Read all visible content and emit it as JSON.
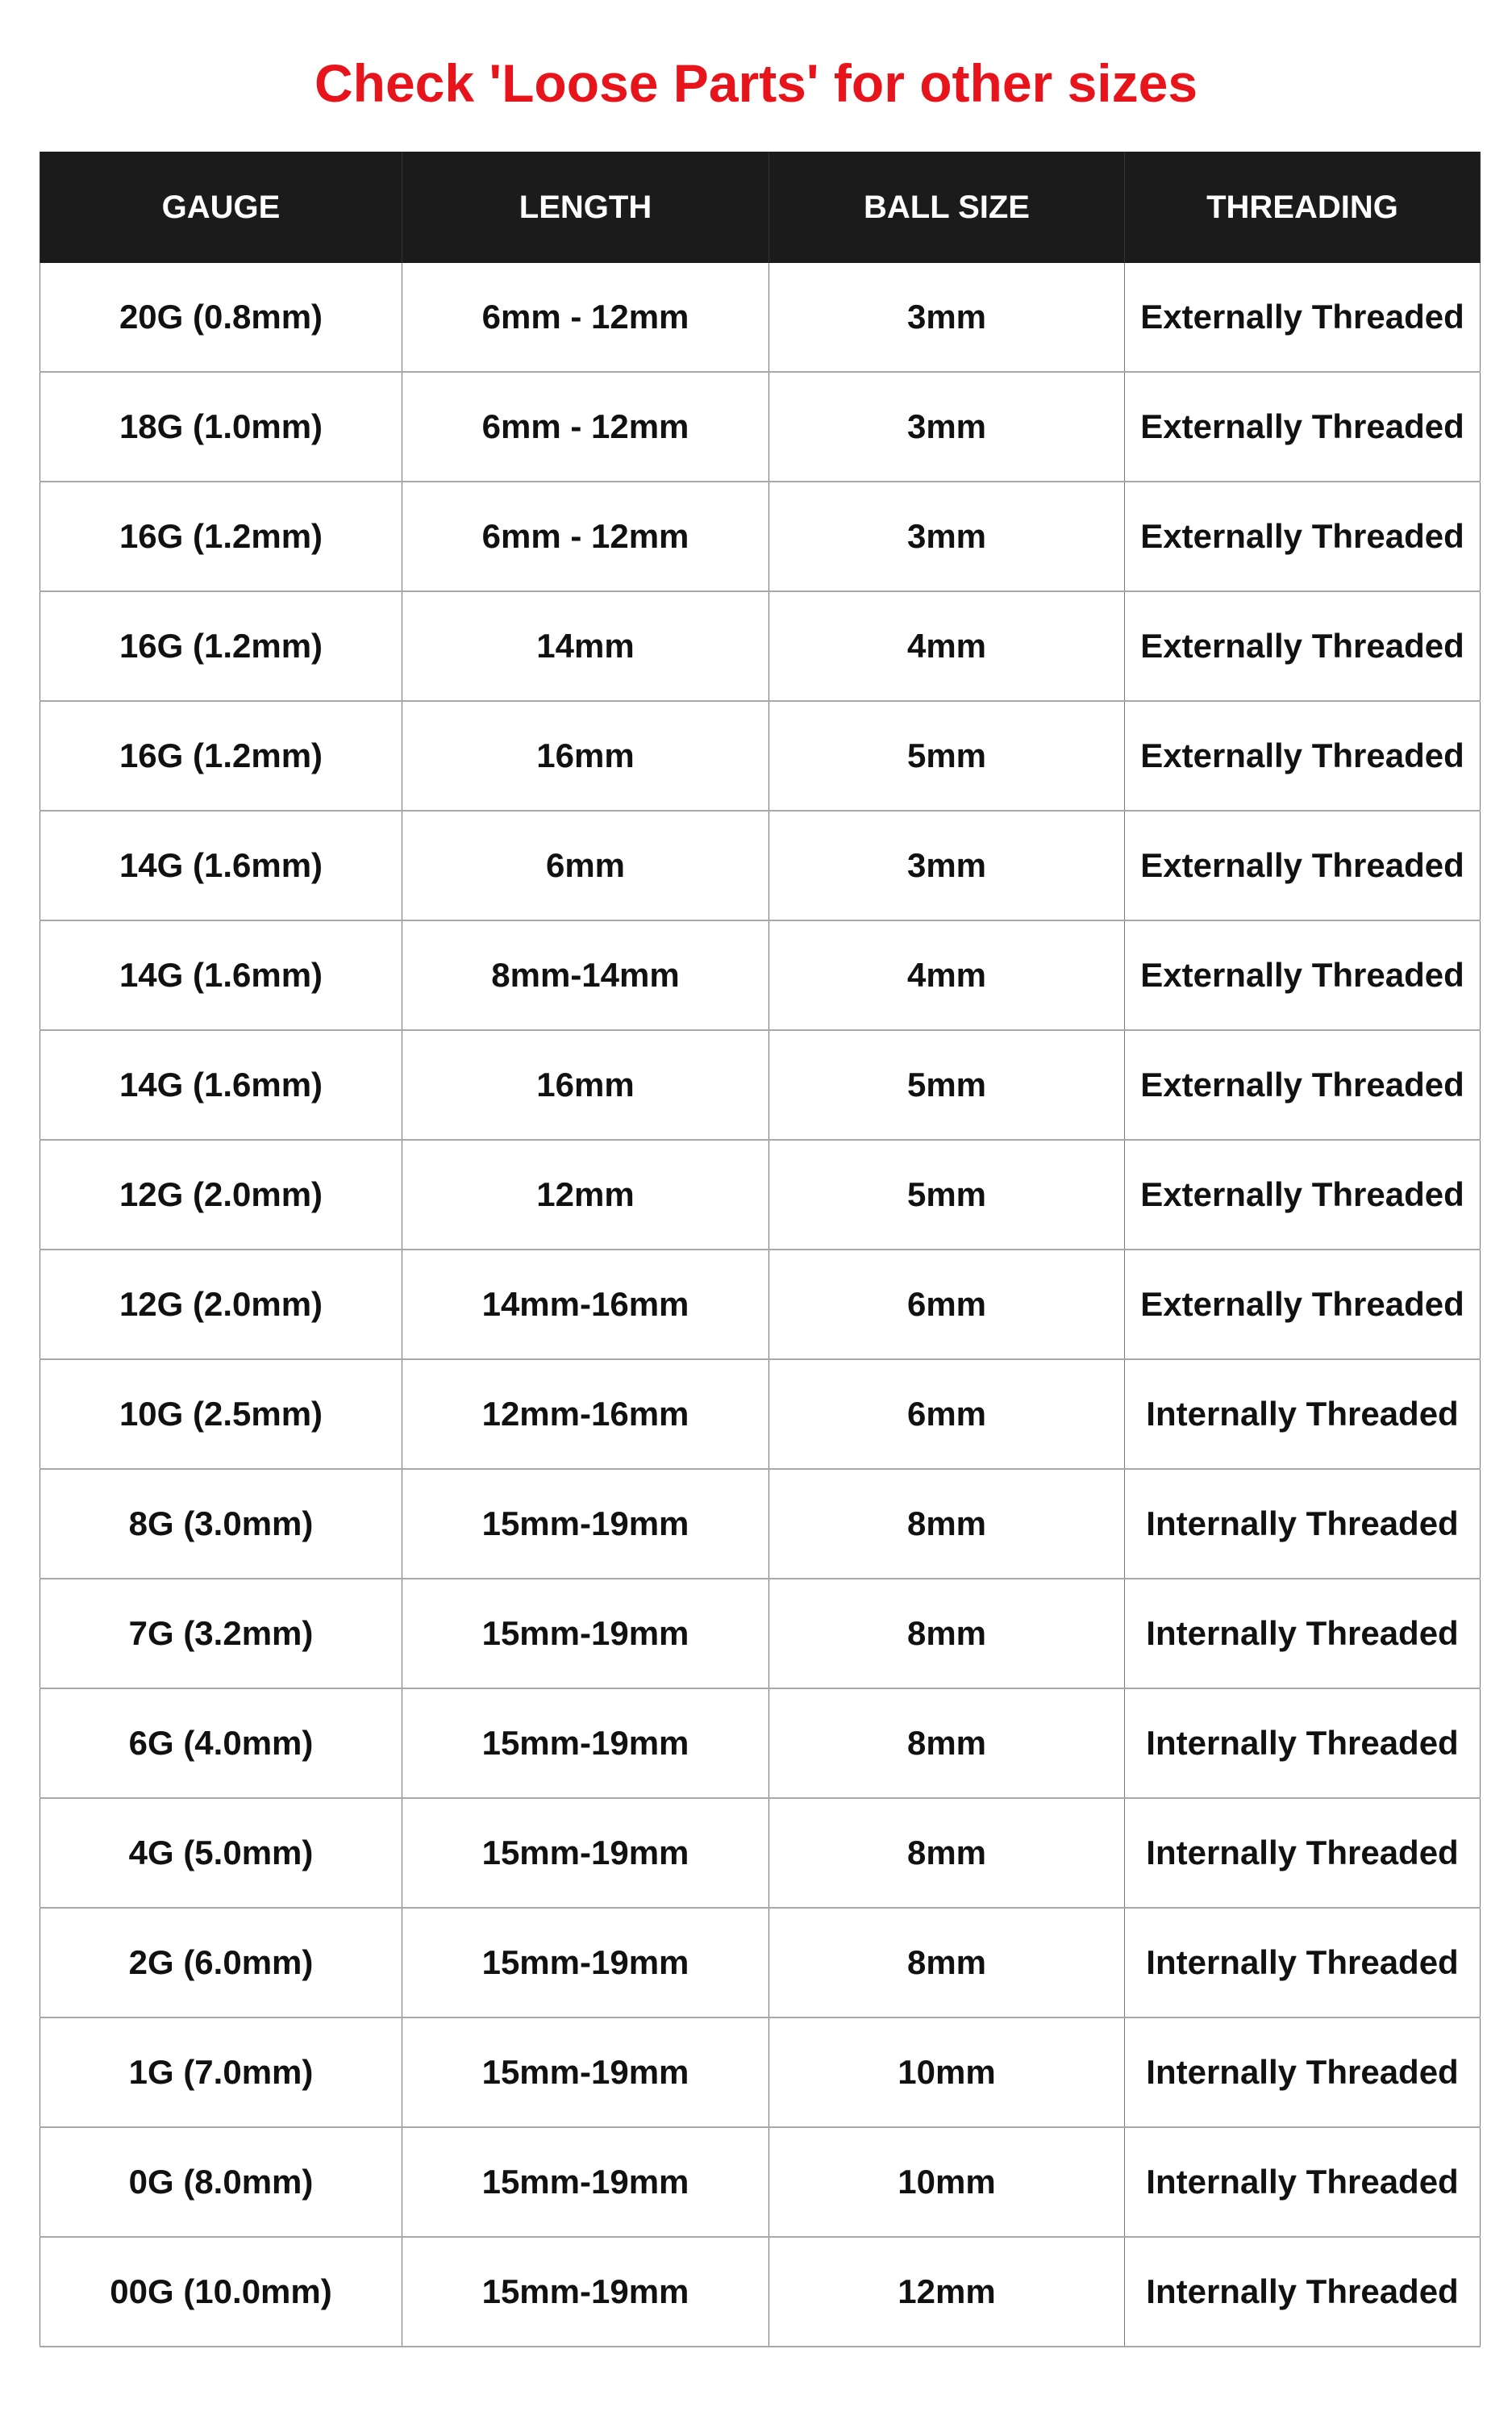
{
  "title": "Check 'Loose Parts' for other sizes",
  "colors": {
    "title": "#e8141b",
    "header_bg": "#1b1b1b"
  },
  "table": {
    "headers": [
      "GAUGE",
      "LENGTH",
      "BALL SIZE",
      "THREADING"
    ],
    "rows": [
      [
        "20G (0.8mm)",
        "6mm - 12mm",
        "3mm",
        "Externally Threaded"
      ],
      [
        "18G (1.0mm)",
        "6mm - 12mm",
        "3mm",
        "Externally Threaded"
      ],
      [
        "16G (1.2mm)",
        "6mm - 12mm",
        "3mm",
        "Externally Threaded"
      ],
      [
        "16G (1.2mm)",
        "14mm",
        "4mm",
        "Externally Threaded"
      ],
      [
        "16G (1.2mm)",
        "16mm",
        "5mm",
        "Externally Threaded"
      ],
      [
        "14G (1.6mm)",
        "6mm",
        "3mm",
        "Externally Threaded"
      ],
      [
        "14G (1.6mm)",
        "8mm-14mm",
        "4mm",
        "Externally Threaded"
      ],
      [
        "14G (1.6mm)",
        "16mm",
        "5mm",
        "Externally Threaded"
      ],
      [
        "12G (2.0mm)",
        "12mm",
        "5mm",
        "Externally Threaded"
      ],
      [
        "12G (2.0mm)",
        "14mm-16mm",
        "6mm",
        "Externally Threaded"
      ],
      [
        "10G (2.5mm)",
        "12mm-16mm",
        "6mm",
        "Internally Threaded"
      ],
      [
        "8G (3.0mm)",
        "15mm-19mm",
        "8mm",
        "Internally Threaded"
      ],
      [
        "7G (3.2mm)",
        "15mm-19mm",
        "8mm",
        "Internally Threaded"
      ],
      [
        "6G (4.0mm)",
        "15mm-19mm",
        "8mm",
        "Internally Threaded"
      ],
      [
        "4G (5.0mm)",
        "15mm-19mm",
        "8mm",
        "Internally Threaded"
      ],
      [
        "2G (6.0mm)",
        "15mm-19mm",
        "8mm",
        "Internally Threaded"
      ],
      [
        "1G (7.0mm)",
        "15mm-19mm",
        "10mm",
        "Internally Threaded"
      ],
      [
        "0G (8.0mm)",
        "15mm-19mm",
        "10mm",
        "Internally Threaded"
      ],
      [
        "00G (10.0mm)",
        "15mm-19mm",
        "12mm",
        "Internally Threaded"
      ]
    ]
  }
}
